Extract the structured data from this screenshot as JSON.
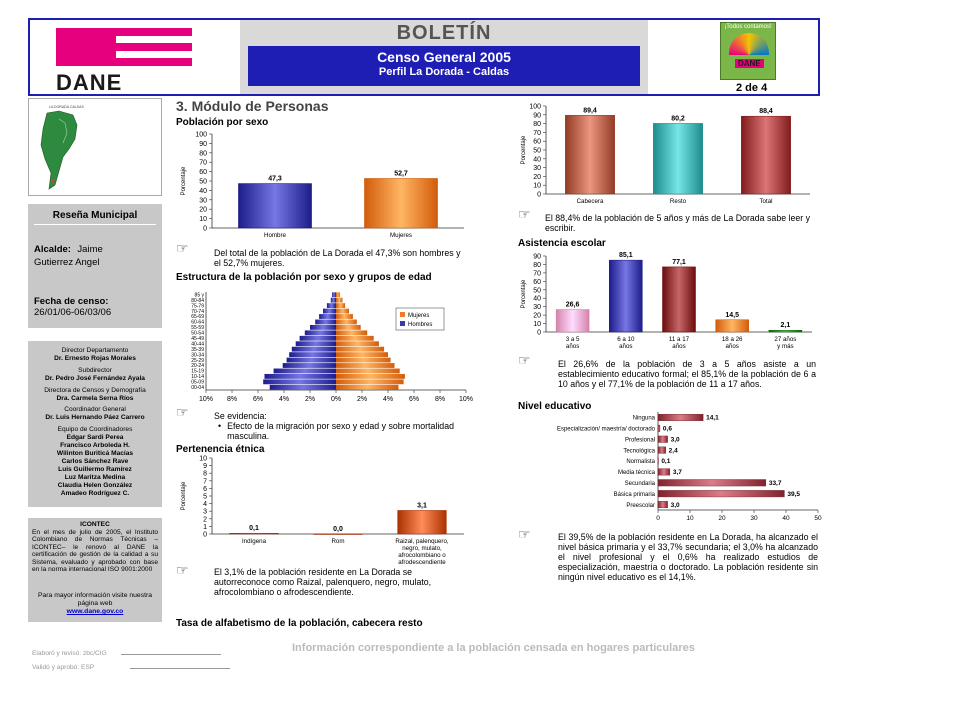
{
  "header": {
    "brand": "DANE",
    "title": "BOLETÍN",
    "subtitle1": "Censo General 2005",
    "subtitle2": "Perfil La Dorada  - Caldas",
    "badge_top": "¡Todos contamos!",
    "badge_brand": "DANE",
    "page": "2 de 4"
  },
  "section_title": "3. Módulo de Personas",
  "map_label": "LA DORADA CALDAS",
  "resena": {
    "heading": "Reseña Municipal",
    "alcalde_label": "Alcalde:",
    "alcalde_value1": "Jaime",
    "alcalde_value2": "Gutierrez Angel",
    "fecha_label": "Fecha de censo:",
    "fecha_value": "26/01/06-06/03/06"
  },
  "directory": [
    {
      "role": "Director Departamento",
      "name": "Dr. Ernesto Rojas Morales"
    },
    {
      "role": "Subdirector",
      "name": "Dr. Pedro José Fernández Ayala"
    },
    {
      "role": "Directora de Censos y Demografía",
      "name": "Dra. Carmela Serna Ríos"
    },
    {
      "role": "Coordinador General",
      "name": "Dr. Luis Hernando Páez Carrero"
    },
    {
      "role": "Equipo de Coordinadores",
      "name": "Edgar Sardi Perea\nFrancisco Arboleda H.\nWilinton Buriticá Macías\nCarlos Sánchez Rave\nLuis Guillermo Ramírez\nLuz Maritza Medina\nClaudia Helen González\nAmadeo Rodríguez C."
    }
  ],
  "icontec": {
    "heading": "ICONTEC",
    "text": "En el mes de julio de 2005, el Instituto Colombiano de Normas Técnicas –ICONTEC– le renovó al DANE la certificación de gestión de la calidad a su Sistema, evaluado y aprobado con base en la norma internacional ISO 9001:2000"
  },
  "web": {
    "text": "Para mayor información visite nuestra página web",
    "url": "www.dane.gov.co"
  },
  "poblacion_sexo": {
    "title": "Población por sexo",
    "note": "Del total de la población de La Dorada el 47,3% son hombres y el 52,7% mujeres."
  },
  "piramide": {
    "title": "Estructura de la población por sexo y grupos de edad",
    "note_lead": "Se evidencia:",
    "note_bullet": "Efecto de la migración por sexo y edad  y sobre mortalidad masculina."
  },
  "etnia": {
    "title": "Pertenencia étnica",
    "note": "El 3,1% de la población residente en La Dorada se autorreconoce como Raizal, palenquero, negro, mulato, afrocolombiano o afrodescendiente."
  },
  "alfabetismo": {
    "title": "Tasa de alfabetismo de la población, cabecera resto",
    "note": "El 88,4% de la población de 5 años y más de La Dorada sabe leer y escribir."
  },
  "asistencia": {
    "title": "Asistencia escolar",
    "note": "El 26,6% de la población de 3 a 5 años asiste a un establecimiento educativo formal; el 85,1% de la población de 6 a 10 años y el 77,1% de la población de 11 a 17 años."
  },
  "nivel": {
    "title": "Nivel educativo",
    "note": "El 39,5% de la población residente en La Dorada, ha alcanzado el nivel básica primaria  y el 33,7% secundaria; el 3,0% ha alcanzado el nivel profesional y el 0,6% ha realizado estudios de especialización, maestría o doctorado. La población residente sin ningún nivel educativo es el 14,1%."
  },
  "footer": {
    "info": "Información correspondiente a la población censada en hogares particulares",
    "elaboro": "Elaboró y revisó: zbc/CIG",
    "valido": "Validó y aprobó: ESP"
  },
  "chart_data": [
    {
      "id": "sexo",
      "type": "bar",
      "categories": [
        "Hombre",
        "Mujeres"
      ],
      "values": [
        47.3,
        52.7
      ],
      "labels": [
        "47,3",
        "52,7"
      ],
      "ylabel": "Porcentaje",
      "ylim": [
        0,
        100
      ],
      "yticks": [
        0,
        10,
        20,
        30,
        40,
        50,
        60,
        70,
        80,
        90,
        100
      ],
      "colors": [
        "#3a3aa8",
        "#f07a28"
      ]
    },
    {
      "id": "piramide",
      "type": "bar",
      "orientation": "horizontal",
      "categories": [
        "00-04",
        "05-09",
        "10-14",
        "15-19",
        "20-24",
        "25-29",
        "30-34",
        "35-39",
        "40-44",
        "45-49",
        "50-54",
        "55-59",
        "60-64",
        "65-69",
        "70-74",
        "75-79",
        "80-84",
        "85 y"
      ],
      "series": [
        {
          "name": "Hombres",
          "values": [
            5.1,
            5.6,
            5.5,
            4.8,
            4.1,
            3.8,
            3.6,
            3.4,
            3.1,
            2.8,
            2.4,
            2.0,
            1.6,
            1.3,
            1.0,
            0.7,
            0.4,
            0.3
          ],
          "color": "#3a3aa8"
        },
        {
          "name": "Mujeres",
          "values": [
            4.8,
            5.2,
            5.3,
            4.9,
            4.5,
            4.2,
            4.0,
            3.7,
            3.3,
            2.9,
            2.4,
            1.9,
            1.6,
            1.3,
            1.0,
            0.7,
            0.5,
            0.3
          ],
          "color": "#f07a28"
        }
      ],
      "xticks": [
        "10%",
        "8%",
        "6%",
        "4%",
        "2%",
        "0%",
        "2%",
        "4%",
        "6%",
        "8%",
        "10%"
      ],
      "xlim": [
        -10,
        10
      ],
      "legend": "top-right"
    },
    {
      "id": "etnia",
      "type": "bar",
      "categories": [
        "Indígena",
        "Rom",
        "Raizal, palenquero, negro, mulato, afrocolombiano o afrodescendiente"
      ],
      "values": [
        0.1,
        0.0,
        3.1
      ],
      "labels": [
        "0,1",
        "0,0",
        "3,1"
      ],
      "ylabel": "Porcentaje",
      "ylim": [
        0,
        10
      ],
      "yticks": [
        0,
        1,
        2,
        3,
        4,
        5,
        6,
        7,
        8,
        9,
        10
      ],
      "colors": [
        "#c8501e",
        "#c8501e",
        "#c8501e"
      ]
    },
    {
      "id": "alfabetismo",
      "type": "bar",
      "categories": [
        "Cabecera",
        "Resto",
        "Total"
      ],
      "values": [
        89.4,
        80.2,
        88.4
      ],
      "labels": [
        "89,4",
        "80,2",
        "88,4"
      ],
      "ylabel": "Porcentaje",
      "ylim": [
        0,
        100
      ],
      "yticks": [
        0,
        10,
        20,
        30,
        40,
        50,
        60,
        70,
        80,
        90,
        100
      ],
      "colors": [
        "#b05a44",
        "#3aaaaa",
        "#a03a3a"
      ]
    },
    {
      "id": "asistencia",
      "type": "bar",
      "categories": [
        "3 a 5 años",
        "6 a 10 años",
        "11 a 17 años",
        "18 a 26 años",
        "27 años y más"
      ],
      "values": [
        26.6,
        85.1,
        77.1,
        14.5,
        2.1
      ],
      "labels": [
        "26,6",
        "85,1",
        "77,1",
        "14,5",
        "2,1"
      ],
      "ylabel": "Porcentaje",
      "ylim": [
        0,
        90
      ],
      "yticks": [
        0,
        10,
        20,
        30,
        40,
        50,
        60,
        70,
        80,
        90
      ],
      "colors": [
        "#f4a0c8",
        "#3a3aa8",
        "#8a2a2a",
        "#f07a28",
        "#2a8a2a"
      ]
    },
    {
      "id": "nivel",
      "type": "bar",
      "orientation": "horizontal",
      "categories": [
        "Ninguna",
        "Especialización/ maestría/ doctorado",
        "Profesional",
        "Tecnológica",
        "Normalista",
        "Media técnica",
        "Secundaria",
        "Básica primaria",
        "Preescolar"
      ],
      "values": [
        14.1,
        0.6,
        3.0,
        2.4,
        0.1,
        3.7,
        33.7,
        39.5,
        3.0
      ],
      "labels": [
        "14,1",
        "0,6",
        "3,0",
        "2,4",
        "0,1",
        "3,7",
        "33,7",
        "39,5",
        "3,0"
      ],
      "xlim": [
        0,
        50
      ],
      "xticks": [
        0,
        10,
        20,
        30,
        40,
        50
      ],
      "colors": [
        "#a0404a"
      ]
    }
  ]
}
